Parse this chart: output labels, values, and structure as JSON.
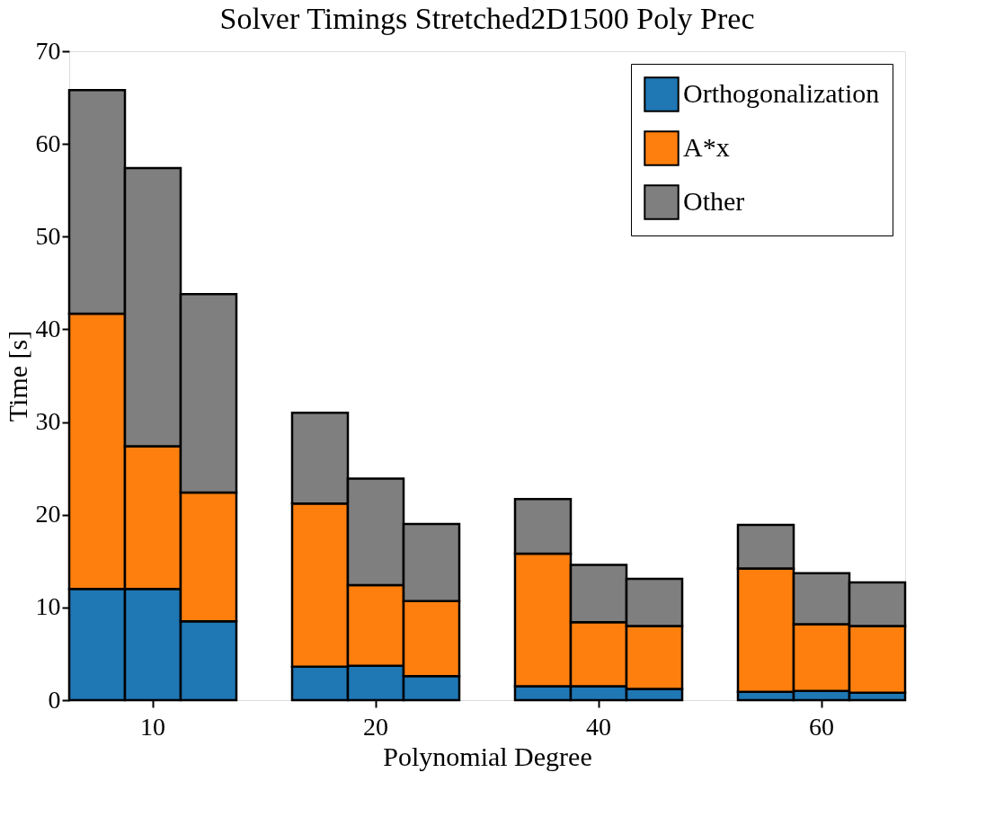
{
  "chart_data": {
    "type": "bar",
    "title": "Solver Timings Stretched2D1500 Poly Prec",
    "xlabel": "Polynomial Degree",
    "ylabel": "Time [s]",
    "categories": [
      null,
      "10",
      null,
      null,
      null,
      "20",
      null,
      null,
      null,
      "40",
      null,
      null,
      null,
      "60",
      null
    ],
    "stacked": true,
    "ylim": [
      0,
      70
    ],
    "yticks": [
      0,
      10,
      20,
      30,
      40,
      50,
      60,
      70
    ],
    "grid": false,
    "legend": "top right",
    "series": [
      {
        "name": "Orthogonalization",
        "color": "#1f77b4",
        "values": [
          12.0,
          12.0,
          8.5,
          null,
          3.6,
          3.7,
          2.6,
          null,
          1.5,
          1.5,
          1.2,
          null,
          0.9,
          1.0,
          0.8
        ]
      },
      {
        "name": "A*x",
        "color": "#ff7f0e",
        "values": [
          29.7,
          15.4,
          13.9,
          null,
          17.6,
          8.7,
          8.1,
          null,
          14.3,
          6.9,
          6.8,
          null,
          13.3,
          7.2,
          7.2
        ]
      },
      {
        "name": "Other",
        "color": "#7f7f7f",
        "values": [
          24.1,
          30.0,
          21.4,
          null,
          9.8,
          11.5,
          8.3,
          null,
          5.9,
          6.2,
          5.1,
          null,
          4.7,
          5.5,
          4.7
        ]
      }
    ]
  }
}
